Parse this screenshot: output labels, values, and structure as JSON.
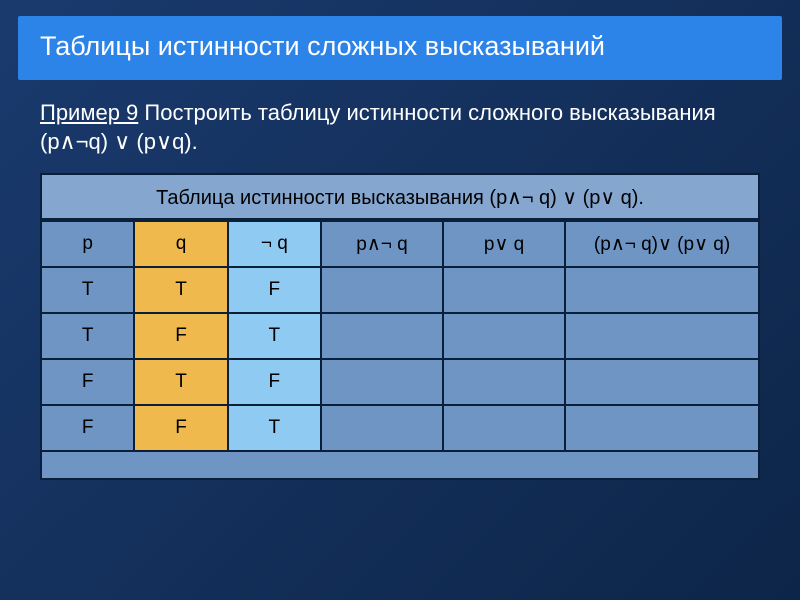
{
  "title": "Таблицы истинности сложных высказываний",
  "example_label": "Пример 9",
  "description_text": "  Построить таблицу истинности сложного высказывания    (p∧¬q) ∨ (p∨q).",
  "table": {
    "caption": "Таблица истинности высказывания (p∧¬ q) ∨   (p∨ q).",
    "columns": [
      "p",
      "q",
      "¬ q",
      "p∧¬ q",
      "p∨ q",
      "(p∧¬ q)∨ (p∨ q)"
    ],
    "rows": [
      {
        "p": "T",
        "q": "T",
        "nq": "F",
        "pnq": "",
        "pvq": "",
        "res": ""
      },
      {
        "p": "T",
        "q": "F",
        "nq": "T",
        "pnq": "",
        "pvq": "",
        "res": ""
      },
      {
        "p": "F",
        "q": "T",
        "nq": "F",
        "pnq": "",
        "pvq": "",
        "res": ""
      },
      {
        "p": "F",
        "q": "F",
        "nq": "T",
        "pnq": "",
        "pvq": "",
        "res": ""
      }
    ],
    "colors": {
      "header_bg": "#6f95c4",
      "q_col_bg": "#f0b94e",
      "nq_col_bg": "#8fcaf2",
      "border": "#0a1f3a",
      "caption_bg": "#85a6cf"
    }
  },
  "slide_bg_from": "#1a3a6e",
  "slide_bg_to": "#0d2548",
  "title_bg": "#2d84e8"
}
